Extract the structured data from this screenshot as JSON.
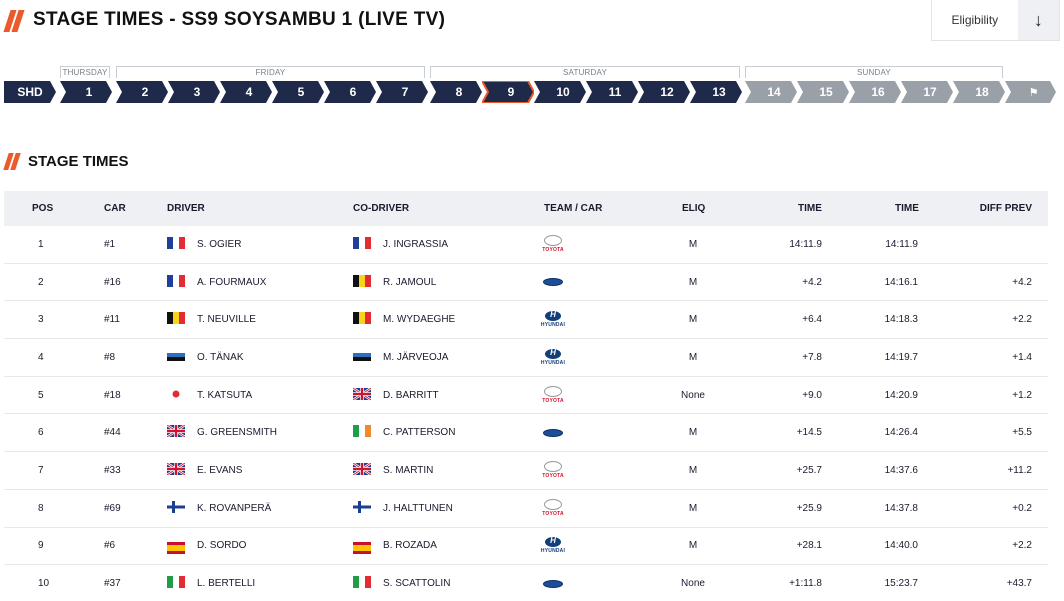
{
  "header": {
    "title": "STAGE TIMES - SS9 SOYSAMBU 1 (LIVE TV)",
    "eligibility_label": "Eligibility",
    "eligibility_icon": "arrow-down-icon"
  },
  "days": [
    "THURSDAY",
    "FRIDAY",
    "SATURDAY",
    "SUNDAY"
  ],
  "stages": [
    {
      "label": "SHD",
      "state": "past"
    },
    {
      "label": "1",
      "state": "past"
    },
    {
      "label": "2",
      "state": "past"
    },
    {
      "label": "3",
      "state": "past"
    },
    {
      "label": "4",
      "state": "past"
    },
    {
      "label": "5",
      "state": "past"
    },
    {
      "label": "6",
      "state": "past"
    },
    {
      "label": "7",
      "state": "past"
    },
    {
      "label": "8",
      "state": "past"
    },
    {
      "label": "9",
      "state": "current"
    },
    {
      "label": "10",
      "state": "past"
    },
    {
      "label": "11",
      "state": "past"
    },
    {
      "label": "12",
      "state": "past"
    },
    {
      "label": "13",
      "state": "past"
    },
    {
      "label": "14",
      "state": "future"
    },
    {
      "label": "15",
      "state": "future"
    },
    {
      "label": "16",
      "state": "future"
    },
    {
      "label": "17",
      "state": "future"
    },
    {
      "label": "18",
      "state": "future"
    },
    {
      "label": "",
      "icon": "chequered-flag-icon",
      "state": "future"
    }
  ],
  "colors": {
    "past": "#1f2a4a",
    "current": "#1f2a4a",
    "current_border": "#ea5a2a",
    "future": "#9aa0a8",
    "accent": "#ea5a2a"
  },
  "section_title": "STAGE TIMES",
  "table": {
    "headers": {
      "pos": "POS",
      "car": "CAR",
      "driver": "DRIVER",
      "codriver": "CO-DRIVER",
      "team": "TEAM / CAR",
      "eliq": "ELIQ",
      "time": "TIME",
      "time2": "TIME",
      "diff": "DIFF PREV"
    },
    "rows": [
      {
        "pos": "1",
        "car": "#1",
        "driver": "S. OGIER",
        "driver_flag": "fr",
        "codriver": "J. INGRASSIA",
        "codriver_flag": "fr",
        "team": "toyota",
        "eliq": "M",
        "time": "14:11.9",
        "time2": "14:11.9",
        "diff": ""
      },
      {
        "pos": "2",
        "car": "#16",
        "driver": "A. FOURMAUX",
        "driver_flag": "fr",
        "codriver": "R. JAMOUL",
        "codriver_flag": "be",
        "team": "ford",
        "eliq": "M",
        "time": "+4.2",
        "time2": "14:16.1",
        "diff": "+4.2"
      },
      {
        "pos": "3",
        "car": "#11",
        "driver": "T. NEUVILLE",
        "driver_flag": "be",
        "codriver": "M. WYDAEGHE",
        "codriver_flag": "be",
        "team": "hyundai",
        "eliq": "M",
        "time": "+6.4",
        "time2": "14:18.3",
        "diff": "+2.2"
      },
      {
        "pos": "4",
        "car": "#8",
        "driver": "O. TÄNAK",
        "driver_flag": "ee",
        "codriver": "M. JÄRVEOJA",
        "codriver_flag": "ee",
        "team": "hyundai",
        "eliq": "M",
        "time": "+7.8",
        "time2": "14:19.7",
        "diff": "+1.4"
      },
      {
        "pos": "5",
        "car": "#18",
        "driver": "T. KATSUTA",
        "driver_flag": "jp",
        "codriver": "D. BARRITT",
        "codriver_flag": "gb",
        "team": "toyota",
        "eliq": "None",
        "time": "+9.0",
        "time2": "14:20.9",
        "diff": "+1.2"
      },
      {
        "pos": "6",
        "car": "#44",
        "driver": "G. GREENSMITH",
        "driver_flag": "gb",
        "codriver": "C. PATTERSON",
        "codriver_flag": "ie",
        "team": "ford",
        "eliq": "M",
        "time": "+14.5",
        "time2": "14:26.4",
        "diff": "+5.5"
      },
      {
        "pos": "7",
        "car": "#33",
        "driver": "E. EVANS",
        "driver_flag": "gb",
        "codriver": "S. MARTIN",
        "codriver_flag": "gb",
        "team": "toyota",
        "eliq": "M",
        "time": "+25.7",
        "time2": "14:37.6",
        "diff": "+11.2"
      },
      {
        "pos": "8",
        "car": "#69",
        "driver": "K. ROVANPERÄ",
        "driver_flag": "fi",
        "codriver": "J. HALTTUNEN",
        "codriver_flag": "fi",
        "team": "toyota",
        "eliq": "M",
        "time": "+25.9",
        "time2": "14:37.8",
        "diff": "+0.2"
      },
      {
        "pos": "9",
        "car": "#6",
        "driver": "D. SORDO",
        "driver_flag": "es",
        "codriver": "B. ROZADA",
        "codriver_flag": "es",
        "team": "hyundai",
        "eliq": "M",
        "time": "+28.1",
        "time2": "14:40.0",
        "diff": "+2.2"
      },
      {
        "pos": "10",
        "car": "#37",
        "driver": "L. BERTELLI",
        "driver_flag": "it",
        "codriver": "S. SCATTOLIN",
        "codriver_flag": "it",
        "team": "ford",
        "eliq": "None",
        "time": "+1:11.8",
        "time2": "15:23.7",
        "diff": "+43.7"
      }
    ]
  }
}
